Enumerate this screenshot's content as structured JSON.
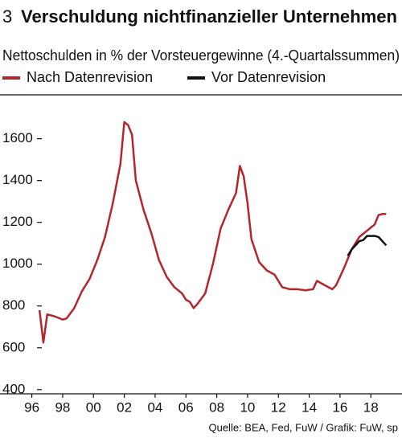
{
  "chart_data": {
    "type": "line",
    "number": "3",
    "title": "Verschuldung nichtfinanzieller Unternehmen",
    "subtitle": "Nettoschulden in % der Vorsteuergewinne (4.-Quartalssummen)",
    "source": "Quelle: BEA, Fed, FuW / Grafik: FuW, sp",
    "xlim": [
      1995.5,
      2019.5
    ],
    "xticks": [
      {
        "value": 1996,
        "label": "96"
      },
      {
        "value": 1998,
        "label": "98"
      },
      {
        "value": 2000,
        "label": "00"
      },
      {
        "value": 2002,
        "label": "02"
      },
      {
        "value": 2004,
        "label": "04"
      },
      {
        "value": 2006,
        "label": "06"
      },
      {
        "value": 2008,
        "label": "08"
      },
      {
        "value": 2010,
        "label": "10"
      },
      {
        "value": 2012,
        "label": "12"
      },
      {
        "value": 2014,
        "label": "14"
      },
      {
        "value": 2016,
        "label": "16"
      },
      {
        "value": 2018,
        "label": "18"
      }
    ],
    "ylim": [
      380,
      1810
    ],
    "yticks": [
      400,
      600,
      800,
      1000,
      1200,
      1400,
      1600
    ],
    "grid": false,
    "legend": "top-left",
    "series": [
      {
        "name": "Nach Datenrevision",
        "color": "#b3262c",
        "x": [
          1996.5,
          1996.75,
          1997.0,
          1997.5,
          1998.0,
          1998.25,
          1998.75,
          1999.25,
          1999.75,
          2000.25,
          2000.75,
          2001.25,
          2001.75,
          2002.0,
          2002.25,
          2002.5,
          2002.75,
          2003.25,
          2003.75,
          2004.25,
          2004.75,
          2005.25,
          2005.75,
          2006.0,
          2006.25,
          2006.5,
          2006.75,
          2007.25,
          2007.75,
          2008.25,
          2008.75,
          2009.25,
          2009.5,
          2009.75,
          2010.0,
          2010.25,
          2010.75,
          2011.25,
          2011.75,
          2012.25,
          2012.75,
          2013.25,
          2013.75,
          2014.25,
          2014.5,
          2015.0,
          2015.5,
          2015.75,
          2016.25,
          2016.75,
          2017.25,
          2017.75,
          2018.25,
          2018.5,
          2018.75,
          2019.0
        ],
        "values": [
          780,
          625,
          760,
          750,
          735,
          740,
          790,
          870,
          930,
          1020,
          1130,
          1290,
          1480,
          1680,
          1665,
          1620,
          1400,
          1260,
          1150,
          1020,
          940,
          890,
          860,
          830,
          820,
          790,
          810,
          860,
          1000,
          1170,
          1260,
          1340,
          1470,
          1420,
          1290,
          1120,
          1010,
          970,
          950,
          890,
          880,
          880,
          875,
          880,
          920,
          900,
          880,
          900,
          980,
          1070,
          1130,
          1160,
          1190,
          1235,
          1240,
          1240
        ]
      },
      {
        "name": "Vor Datenrevision",
        "color": "#111111",
        "x": [
          2016.5,
          2016.75,
          2017.25,
          2017.5,
          2017.75,
          2018.25,
          2018.5,
          2018.75,
          2019.0
        ],
        "values": [
          1040,
          1070,
          1110,
          1115,
          1135,
          1135,
          1130,
          1110,
          1090
        ]
      }
    ]
  }
}
